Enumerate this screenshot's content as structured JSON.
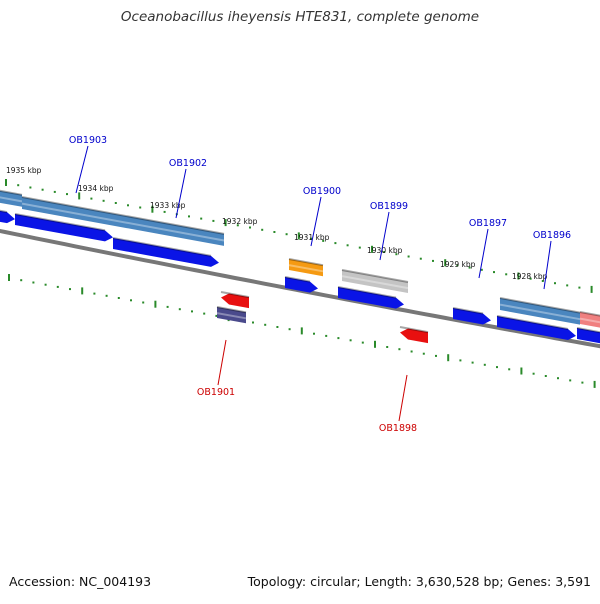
{
  "title": "Oceanobacillus iheyensis HTE831, complete genome",
  "footer": {
    "accession": "Accession: NC_004193",
    "summary": "Topology: circular; Length: 3,630,528 bp; Genes: 3,591"
  },
  "ticks": [
    {
      "label": "1935 kbp"
    },
    {
      "label": "1934 kbp"
    },
    {
      "label": "1933 kbp"
    },
    {
      "label": "1932 kbp"
    },
    {
      "label": "1931 kbp"
    },
    {
      "label": "1930 kbp"
    },
    {
      "label": "1929 kbp"
    },
    {
      "label": "1928 kbp"
    }
  ],
  "genes": [
    {
      "name": "OB1903",
      "color": "#0000cc"
    },
    {
      "name": "OB1902",
      "color": "#0000cc"
    },
    {
      "name": "OB1901",
      "color": "#cc0000"
    },
    {
      "name": "OB1900",
      "color": "#0000cc"
    },
    {
      "name": "OB1899",
      "color": "#0000cc"
    },
    {
      "name": "OB1898",
      "color": "#cc0000"
    },
    {
      "name": "OB1897",
      "color": "#0000cc"
    },
    {
      "name": "OB1896",
      "color": "#0000cc"
    }
  ],
  "colors": {
    "backbone": "#777777",
    "tick_mark": "#2a8a2a",
    "cds_forward": "#0a14e6",
    "cds_reverse": "#e81010",
    "gene_steelblue": "#4a86bf",
    "gene_orange": "#f59a12",
    "gene_gray": "#c4c4c4",
    "gene_purple": "#4a4a8c",
    "gene_pink": "#f08080"
  }
}
